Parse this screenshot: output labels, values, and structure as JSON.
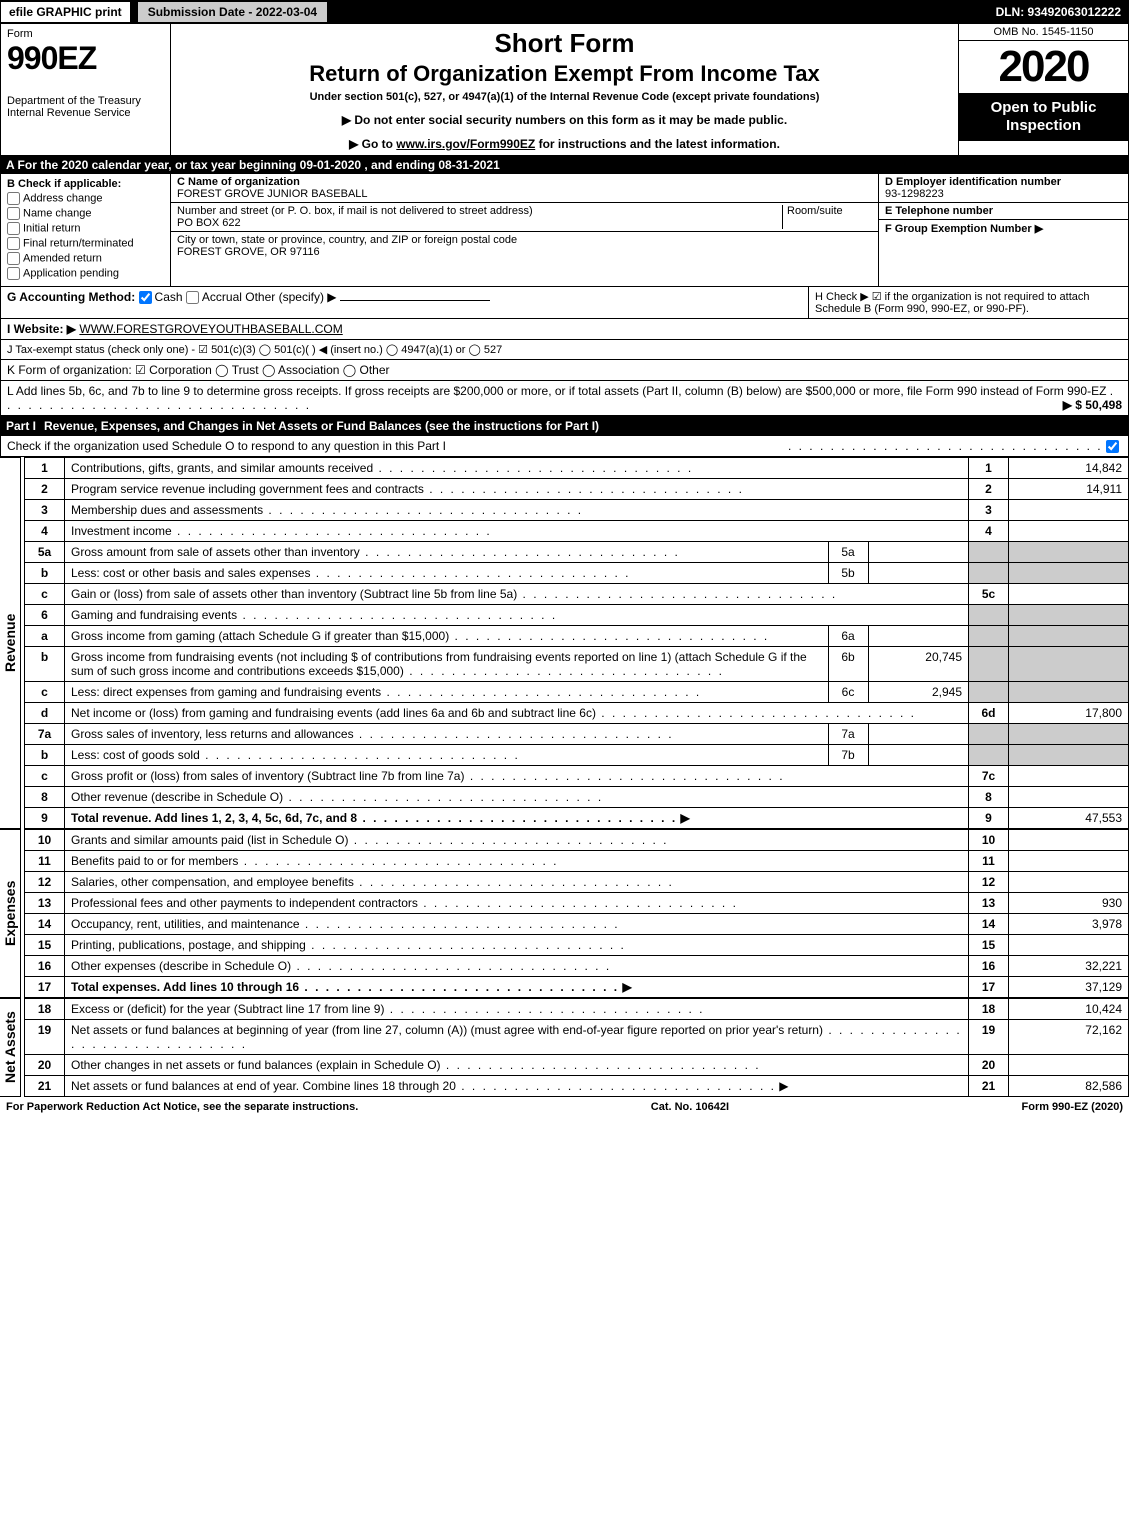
{
  "top": {
    "efile": "efile GRAPHIC print",
    "submission": "Submission Date - 2022-03-04",
    "dln": "DLN: 93492063012222"
  },
  "header": {
    "form_word": "Form",
    "form_num": "990EZ",
    "dept": "Department of the Treasury\nInternal Revenue Service",
    "short": "Short Form",
    "title": "Return of Organization Exempt From Income Tax",
    "under": "Under section 501(c), 527, or 4947(a)(1) of the Internal Revenue Code (except private foundations)",
    "warn1": "▶ Do not enter social security numbers on this form as it may be made public.",
    "warn2_pre": "▶ Go to ",
    "warn2_link": "www.irs.gov/Form990EZ",
    "warn2_post": " for instructions and the latest information.",
    "omb": "OMB No. 1545-1150",
    "year": "2020",
    "open": "Open to Public Inspection"
  },
  "sectionA": "A  For the 2020 calendar year, or tax year beginning 09-01-2020 , and ending 08-31-2021",
  "B": {
    "label": "B  Check if applicable:",
    "items": [
      "Address change",
      "Name change",
      "Initial return",
      "Final return/terminated",
      "Amended return",
      "Application pending"
    ]
  },
  "C": {
    "name_lbl": "C Name of organization",
    "name": "FOREST GROVE JUNIOR BASEBALL",
    "addr_lbl": "Number and street (or P. O. box, if mail is not delivered to street address)",
    "room_lbl": "Room/suite",
    "addr": "PO BOX 622",
    "city_lbl": "City or town, state or province, country, and ZIP or foreign postal code",
    "city": "FOREST GROVE, OR  97116"
  },
  "D": {
    "ein_lbl": "D Employer identification number",
    "ein": "93-1298223",
    "tel_lbl": "E Telephone number",
    "group_lbl": "F Group Exemption Number  ▶"
  },
  "G": {
    "label": "G Accounting Method:",
    "cash": "Cash",
    "accrual": "Accrual",
    "other": "Other (specify) ▶"
  },
  "H": "H  Check ▶ ☑ if the organization is not required to attach Schedule B (Form 990, 990-EZ, or 990-PF).",
  "I": {
    "label": "I Website: ▶",
    "value": "WWW.FORESTGROVEYOUTHBASEBALL.COM"
  },
  "J": "J Tax-exempt status (check only one) - ☑ 501(c)(3)  ◯ 501(c)(  ) ◀ (insert no.)  ◯ 4947(a)(1) or  ◯ 527",
  "K": "K Form of organization:  ☑ Corporation  ◯ Trust  ◯ Association  ◯ Other",
  "L": {
    "text": "L Add lines 5b, 6c, and 7b to line 9 to determine gross receipts. If gross receipts are $200,000 or more, or if total assets (Part II, column (B) below) are $500,000 or more, file Form 990 instead of Form 990-EZ",
    "amount": "▶ $ 50,498"
  },
  "part1": {
    "label": "Part I",
    "title": "Revenue, Expenses, and Changes in Net Assets or Fund Balances (see the instructions for Part I)",
    "sub": "Check if the organization used Schedule O to respond to any question in this Part I"
  },
  "side_labels": {
    "rev": "Revenue",
    "exp": "Expenses",
    "net": "Net Assets"
  },
  "lines": {
    "1": {
      "n": "1",
      "d": "Contributions, gifts, grants, and similar amounts received",
      "box": "1",
      "amt": "14,842"
    },
    "2": {
      "n": "2",
      "d": "Program service revenue including government fees and contracts",
      "box": "2",
      "amt": "14,911"
    },
    "3": {
      "n": "3",
      "d": "Membership dues and assessments",
      "box": "3",
      "amt": ""
    },
    "4": {
      "n": "4",
      "d": "Investment income",
      "box": "4",
      "amt": ""
    },
    "5a": {
      "n": "5a",
      "d": "Gross amount from sale of assets other than inventory",
      "sub": "5a",
      "subamt": ""
    },
    "5b": {
      "n": "b",
      "d": "Less: cost or other basis and sales expenses",
      "sub": "5b",
      "subamt": ""
    },
    "5c": {
      "n": "c",
      "d": "Gain or (loss) from sale of assets other than inventory (Subtract line 5b from line 5a)",
      "box": "5c",
      "amt": ""
    },
    "6": {
      "n": "6",
      "d": "Gaming and fundraising events"
    },
    "6a": {
      "n": "a",
      "d": "Gross income from gaming (attach Schedule G if greater than $15,000)",
      "sub": "6a",
      "subamt": ""
    },
    "6b": {
      "n": "b",
      "d": "Gross income from fundraising events (not including $               of contributions from fundraising events reported on line 1) (attach Schedule G if the sum of such gross income and contributions exceeds $15,000)",
      "sub": "6b",
      "subamt": "20,745"
    },
    "6c": {
      "n": "c",
      "d": "Less: direct expenses from gaming and fundraising events",
      "sub": "6c",
      "subamt": "2,945"
    },
    "6d": {
      "n": "d",
      "d": "Net income or (loss) from gaming and fundraising events (add lines 6a and 6b and subtract line 6c)",
      "box": "6d",
      "amt": "17,800"
    },
    "7a": {
      "n": "7a",
      "d": "Gross sales of inventory, less returns and allowances",
      "sub": "7a",
      "subamt": ""
    },
    "7b": {
      "n": "b",
      "d": "Less: cost of goods sold",
      "sub": "7b",
      "subamt": ""
    },
    "7c": {
      "n": "c",
      "d": "Gross profit or (loss) from sales of inventory (Subtract line 7b from line 7a)",
      "box": "7c",
      "amt": ""
    },
    "8": {
      "n": "8",
      "d": "Other revenue (describe in Schedule O)",
      "box": "8",
      "amt": ""
    },
    "9": {
      "n": "9",
      "d": "Total revenue. Add lines 1, 2, 3, 4, 5c, 6d, 7c, and 8",
      "box": "9",
      "amt": "47,553",
      "arrow": true,
      "bold": true
    },
    "10": {
      "n": "10",
      "d": "Grants and similar amounts paid (list in Schedule O)",
      "box": "10",
      "amt": ""
    },
    "11": {
      "n": "11",
      "d": "Benefits paid to or for members",
      "box": "11",
      "amt": ""
    },
    "12": {
      "n": "12",
      "d": "Salaries, other compensation, and employee benefits",
      "box": "12",
      "amt": ""
    },
    "13": {
      "n": "13",
      "d": "Professional fees and other payments to independent contractors",
      "box": "13",
      "amt": "930"
    },
    "14": {
      "n": "14",
      "d": "Occupancy, rent, utilities, and maintenance",
      "box": "14",
      "amt": "3,978"
    },
    "15": {
      "n": "15",
      "d": "Printing, publications, postage, and shipping",
      "box": "15",
      "amt": ""
    },
    "16": {
      "n": "16",
      "d": "Other expenses (describe in Schedule O)",
      "box": "16",
      "amt": "32,221"
    },
    "17": {
      "n": "17",
      "d": "Total expenses. Add lines 10 through 16",
      "box": "17",
      "amt": "37,129",
      "arrow": true,
      "bold": true
    },
    "18": {
      "n": "18",
      "d": "Excess or (deficit) for the year (Subtract line 17 from line 9)",
      "box": "18",
      "amt": "10,424"
    },
    "19": {
      "n": "19",
      "d": "Net assets or fund balances at beginning of year (from line 27, column (A)) (must agree with end-of-year figure reported on prior year's return)",
      "box": "19",
      "amt": "72,162"
    },
    "20": {
      "n": "20",
      "d": "Other changes in net assets or fund balances (explain in Schedule O)",
      "box": "20",
      "amt": ""
    },
    "21": {
      "n": "21",
      "d": "Net assets or fund balances at end of year. Combine lines 18 through 20",
      "box": "21",
      "amt": "82,586",
      "arrow": true
    }
  },
  "footer": {
    "left": "For Paperwork Reduction Act Notice, see the separate instructions.",
    "mid": "Cat. No. 10642I",
    "right": "Form 990-EZ (2020)"
  }
}
